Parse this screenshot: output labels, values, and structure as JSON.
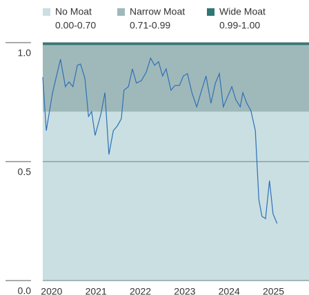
{
  "chart_data": {
    "type": "line",
    "bands": [
      {
        "name": "No Moat",
        "label": "0.00-0.70",
        "from": 0,
        "to": 0.7,
        "color": "#c9dfe2"
      },
      {
        "name": "Narrow Moat",
        "label": "0.71-0.99",
        "from": 0.71,
        "to": 0.99,
        "color": "#9fb9ba"
      },
      {
        "name": "Wide Moat",
        "label": "0.99-1.00",
        "from": 0.99,
        "to": 1.0,
        "color": "#2f7775"
      }
    ],
    "x": [
      2019.8,
      2019.88,
      2020.02,
      2020.2,
      2020.31,
      2020.39,
      2020.48,
      2020.58,
      2020.65,
      2020.75,
      2020.83,
      2020.9,
      2020.98,
      2021.11,
      2021.2,
      2021.29,
      2021.39,
      2021.48,
      2021.57,
      2021.63,
      2021.73,
      2021.82,
      2021.91,
      2022.02,
      2022.13,
      2022.23,
      2022.32,
      2022.41,
      2022.5,
      2022.58,
      2022.69,
      2022.78,
      2022.88,
      2022.97,
      2023.06,
      2023.16,
      2023.27,
      2023.38,
      2023.48,
      2023.59,
      2023.69,
      2023.78,
      2023.87,
      2023.97,
      2024.06,
      2024.15,
      2024.25,
      2024.31,
      2024.4,
      2024.49,
      2024.59,
      2024.67,
      2024.74,
      2024.82,
      2024.91,
      2024.99,
      2025.08
    ],
    "values": [
      0.855,
      0.63,
      0.79,
      0.93,
      0.815,
      0.835,
      0.815,
      0.905,
      0.91,
      0.85,
      0.69,
      0.71,
      0.61,
      0.7,
      0.79,
      0.53,
      0.63,
      0.65,
      0.68,
      0.8,
      0.815,
      0.89,
      0.83,
      0.84,
      0.875,
      0.935,
      0.905,
      0.92,
      0.86,
      0.89,
      0.8,
      0.82,
      0.82,
      0.86,
      0.87,
      0.79,
      0.73,
      0.8,
      0.86,
      0.745,
      0.83,
      0.87,
      0.73,
      0.775,
      0.815,
      0.76,
      0.73,
      0.79,
      0.745,
      0.715,
      0.63,
      0.34,
      0.27,
      0.26,
      0.42,
      0.28,
      0.24
    ],
    "color": "#2e6fb5",
    "xlim": [
      2019.8,
      2025.8
    ],
    "xticks": [
      2020,
      2021,
      2022,
      2023,
      2024,
      2025
    ],
    "ylim": [
      0,
      1.0
    ],
    "yticks": [
      {
        "value": 0,
        "label": "0.0"
      },
      0.5,
      {
        "value": 1.0,
        "label": "1.0"
      }
    ],
    "grid": true
  }
}
